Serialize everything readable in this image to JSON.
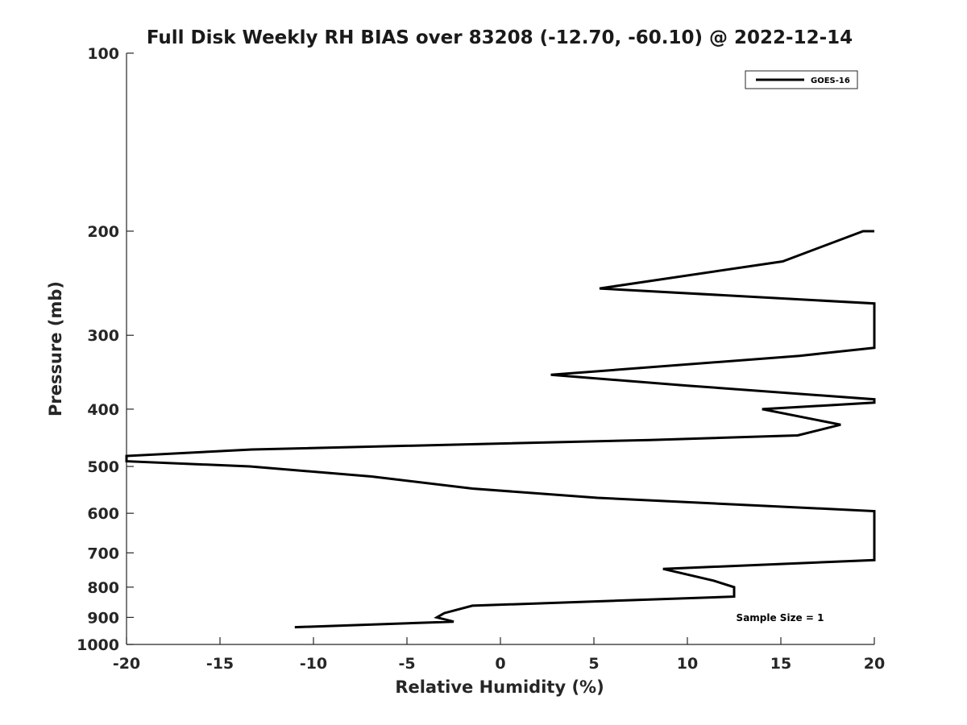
{
  "chart_data": {
    "type": "line",
    "title": "Full Disk Weekly RH BIAS over 83208 (-12.70, -60.10) @ 2022-12-14",
    "xlabel": "Relative Humidity (%)",
    "ylabel": "Pressure (mb)",
    "xlim": [
      -20,
      20
    ],
    "ylim": [
      100,
      1000
    ],
    "yscale": "log",
    "y_reversed": true,
    "xticks": [
      -20,
      -15,
      -10,
      -5,
      0,
      5,
      10,
      15,
      20
    ],
    "yticks": [
      100,
      200,
      300,
      400,
      500,
      600,
      700,
      800,
      900,
      1000
    ],
    "grid": false,
    "legend_position": "top-right",
    "annotation": "Sample Size = 1",
    "series": [
      {
        "name": "GOES-16",
        "color": "#000000",
        "points": [
          [
            20,
            200
          ],
          [
            19.4,
            200
          ],
          [
            15.1,
            225
          ],
          [
            5.3,
            250
          ],
          [
            20,
            265
          ],
          [
            20,
            315
          ],
          [
            16.0,
            325
          ],
          [
            2.7,
            350
          ],
          [
            10.0,
            365
          ],
          [
            20,
            385
          ],
          [
            20,
            390
          ],
          [
            14.0,
            400
          ],
          [
            18.2,
            425
          ],
          [
            15.9,
            443
          ],
          [
            8.0,
            451
          ],
          [
            -13.3,
            468
          ],
          [
            -20,
            480
          ],
          [
            -20,
            490
          ],
          [
            -13.4,
            500
          ],
          [
            -6.9,
            520
          ],
          [
            -1.5,
            545
          ],
          [
            5.2,
            565
          ],
          [
            20,
            595
          ],
          [
            20,
            720
          ],
          [
            8.7,
            745
          ],
          [
            11.4,
            780
          ],
          [
            12.5,
            800
          ],
          [
            12.5,
            830
          ],
          [
            -1.5,
            860
          ],
          [
            -3.0,
            885
          ],
          [
            -3.4,
            900
          ],
          [
            -2.5,
            915
          ],
          [
            -11.0,
            935
          ]
        ]
      }
    ]
  }
}
